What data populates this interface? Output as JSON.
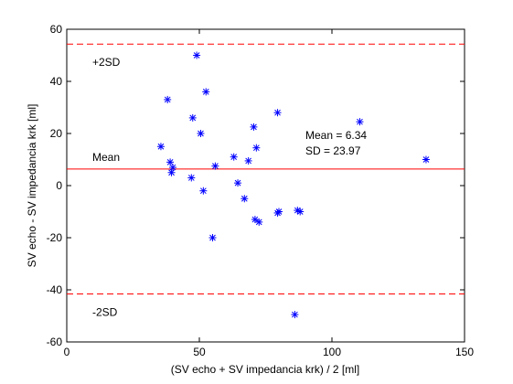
{
  "chart_data": {
    "type": "scatter",
    "xlabel": "(SV echo + SV impedancia krk) / 2 [ml]",
    "ylabel": "SV echo - SV impedancia krk [ml]",
    "xlim": [
      0,
      150
    ],
    "ylim": [
      -60,
      60
    ],
    "xticks": [
      0,
      50,
      100,
      150
    ],
    "yticks": [
      -60,
      -40,
      -20,
      0,
      20,
      40,
      60
    ],
    "grid": false,
    "marker": "*",
    "marker_color": "#0000ff",
    "line_color": "#ff0000",
    "points": [
      {
        "x": 35.5,
        "y": 15
      },
      {
        "x": 38,
        "y": 33
      },
      {
        "x": 39,
        "y": 9
      },
      {
        "x": 39.5,
        "y": 5
      },
      {
        "x": 40,
        "y": 7
      },
      {
        "x": 47,
        "y": 3
      },
      {
        "x": 47.5,
        "y": 26
      },
      {
        "x": 49,
        "y": 50
      },
      {
        "x": 50.5,
        "y": 20
      },
      {
        "x": 51.5,
        "y": -2
      },
      {
        "x": 52.5,
        "y": 36
      },
      {
        "x": 55,
        "y": -20
      },
      {
        "x": 56,
        "y": 7.5
      },
      {
        "x": 63,
        "y": 11
      },
      {
        "x": 64.5,
        "y": 1
      },
      {
        "x": 67,
        "y": -5
      },
      {
        "x": 68.5,
        "y": 9.5
      },
      {
        "x": 70.5,
        "y": 22.5
      },
      {
        "x": 71,
        "y": -13
      },
      {
        "x": 71.5,
        "y": 14.5
      },
      {
        "x": 72.5,
        "y": -14
      },
      {
        "x": 79.5,
        "y": 28
      },
      {
        "x": 79.5,
        "y": -10.5
      },
      {
        "x": 80,
        "y": -10
      },
      {
        "x": 86,
        "y": -49.5
      },
      {
        "x": 87,
        "y": -9.5
      },
      {
        "x": 88,
        "y": -10
      },
      {
        "x": 110.5,
        "y": 24.5
      },
      {
        "x": 135.5,
        "y": 10
      }
    ],
    "reference_lines": [
      {
        "label": "+2SD",
        "y": 54.3,
        "style": "dashed"
      },
      {
        "label": "Mean",
        "y": 6.34,
        "style": "solid"
      },
      {
        "label": "-2SD",
        "y": -41.6,
        "style": "dashed"
      }
    ],
    "annotations": {
      "mean_text": "Mean = 6.34",
      "sd_text": "SD = 23.97"
    }
  }
}
